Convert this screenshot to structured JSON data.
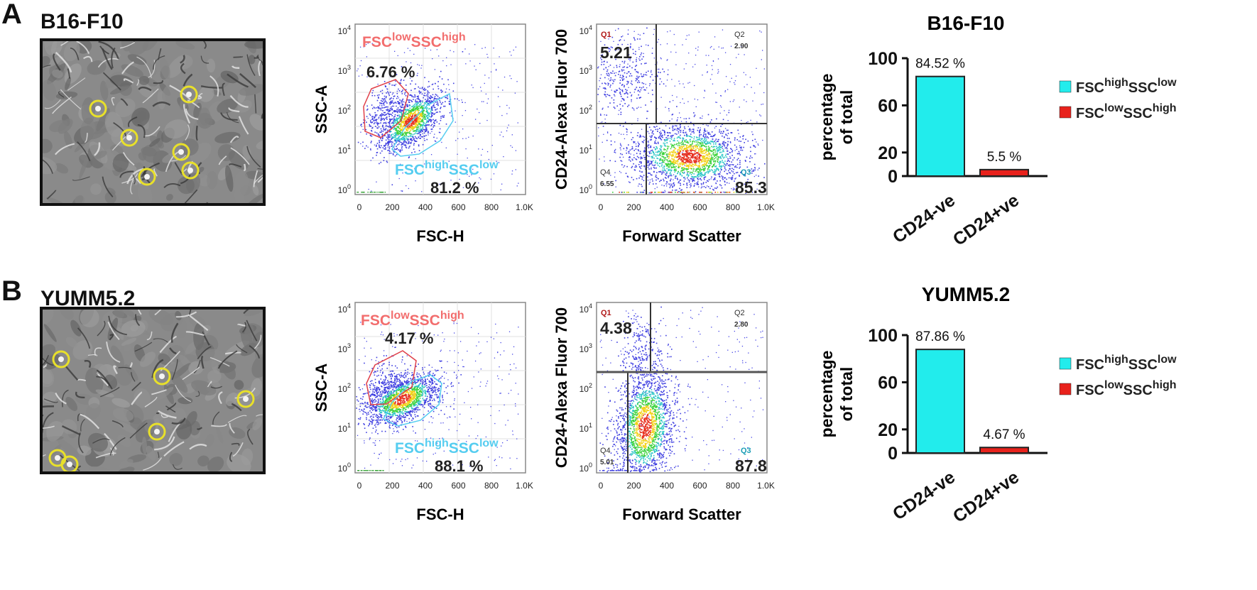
{
  "panels": [
    {
      "label": "A",
      "cell_line": "B16-F10",
      "gate_plot": {
        "y_axis": "SSC-A",
        "x_axis": "FSC-H",
        "x_ticks": [
          "0",
          "200",
          "400",
          "600",
          "800",
          "1.0K"
        ],
        "y_ticks": [
          "10^4",
          "10^3",
          "10^2",
          "10^1",
          "10^0"
        ],
        "gate_low": {
          "text": "FSC",
          "sup": "low",
          "sub": "SSC",
          "sup2": "high",
          "color": "#f26d6d",
          "pct": "6.76 %"
        },
        "gate_high": {
          "text": "FSC",
          "sup": "high",
          "sub": "SSC",
          "sup2": "low",
          "color": "#55cdf0",
          "pct": "81.2 %"
        }
      },
      "quad_plot": {
        "y_axis": "CD24-Alexa Fluor 700",
        "x_axis": "Forward Scatter",
        "x_ticks": [
          "0",
          "200",
          "400",
          "600",
          "800",
          "1.0K"
        ],
        "y_ticks": [
          "10^4",
          "10^3",
          "10^2",
          "10^1",
          "10^0"
        ],
        "q1": "Q1",
        "q1_val": "5.21",
        "q2": "Q2",
        "q2_val": "2.90",
        "q3": "Q3",
        "q3_val": "85.3",
        "q4": "Q4",
        "q4_val": "6.55"
      },
      "bar_chart": {
        "title": "B16-F10",
        "ylabel_1": "percentage",
        "ylabel_2": "of total",
        "y_ticks": [
          "100",
          "60",
          "20",
          "0"
        ],
        "legend": [
          {
            "text": "FSC",
            "sup": "high",
            "mid": "SSC",
            "sup2": "low",
            "color": "#22ecec"
          },
          {
            "text": "FSC",
            "sup": "low",
            "mid": "SSC",
            "sup2": "high",
            "color": "#e8221c"
          }
        ]
      }
    },
    {
      "label": "B",
      "cell_line": "YUMM5.2",
      "gate_plot": {
        "y_axis": "SSC-A",
        "x_axis": "FSC-H",
        "x_ticks": [
          "0",
          "200",
          "400",
          "600",
          "800",
          "1.0K"
        ],
        "y_ticks": [
          "10^4",
          "10^3",
          "10^2",
          "10^1",
          "10^0"
        ],
        "gate_low": {
          "text": "FSC",
          "sup": "low",
          "sub": "SSC",
          "sup2": "high",
          "color": "#f26d6d",
          "pct": "4.17 %"
        },
        "gate_high": {
          "text": "FSC",
          "sup": "high",
          "sub": "SSC",
          "sup2": "low",
          "color": "#55cdf0",
          "pct": "88.1 %"
        }
      },
      "quad_plot": {
        "y_axis": "CD24-Alexa Fluor 700",
        "x_axis": "Forward Scatter",
        "x_ticks": [
          "0",
          "200",
          "400",
          "600",
          "800",
          "1.0K"
        ],
        "y_ticks": [
          "10^4",
          "10^3",
          "10^2",
          "10^1",
          "10^0"
        ],
        "q1": "Q1",
        "q1_val": "4.38",
        "q2": "Q2",
        "q2_val": "2.80",
        "q3": "Q3",
        "q3_val": "87.8",
        "q4": "Q4",
        "q4_val": "5.01"
      },
      "bar_chart": {
        "title": "YUMM5.2",
        "ylabel_1": "percentage",
        "ylabel_2": "of total",
        "y_ticks": [
          "100",
          "60",
          "20",
          "0"
        ],
        "legend": [
          {
            "text": "FSC",
            "sup": "high",
            "mid": "SSC",
            "sup2": "low",
            "color": "#22ecec"
          },
          {
            "text": "FSC",
            "sup": "low",
            "mid": "SSC",
            "sup2": "high",
            "color": "#e8221c"
          }
        ]
      }
    }
  ],
  "chart_data": [
    {
      "type": "bar",
      "title": "B16-F10",
      "ylabel": "percentage of total",
      "ylim": [
        0,
        100
      ],
      "categories": [
        "CD24-ve",
        "CD24+ve"
      ],
      "values": [
        84.52,
        5.5
      ],
      "value_labels": [
        "84.52 %",
        "5.5 %"
      ],
      "colors": [
        "#22ecec",
        "#e8221c"
      ]
    },
    {
      "type": "bar",
      "title": "YUMM5.2",
      "ylabel": "percentage of total",
      "ylim": [
        0,
        100
      ],
      "categories": [
        "CD24-ve",
        "CD24+ve"
      ],
      "values": [
        87.86,
        4.67
      ],
      "value_labels": [
        "87.86 %",
        "4.67 %"
      ],
      "colors": [
        "#22ecec",
        "#e8221c"
      ]
    }
  ]
}
